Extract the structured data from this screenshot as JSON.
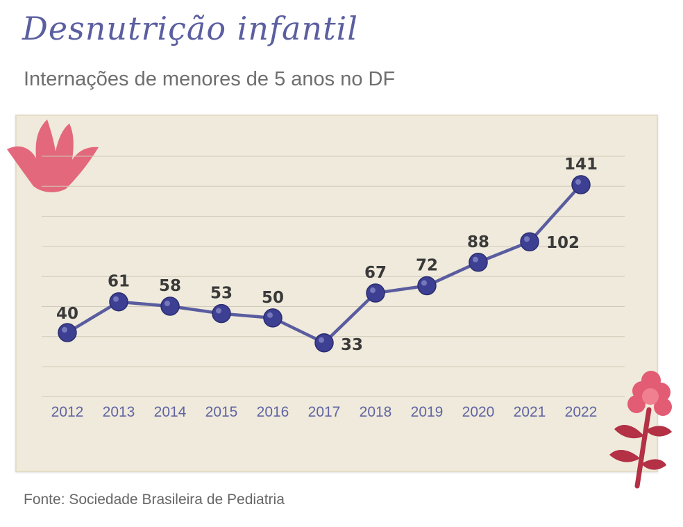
{
  "header": {
    "title": "Desnutrição infantil",
    "subtitle": "Internações de menores de 5 anos no DF"
  },
  "footer": {
    "source": "Fonte: Sociedade Brasileira de Pediatria"
  },
  "colors": {
    "line": "#5a5ca0",
    "point": "#3d3f92",
    "paper": "#efeadb",
    "grid": "#cfc9b9",
    "accent_flower": "#e25c74",
    "stem": "#b33045"
  },
  "decorations": [
    "flower-icon",
    "flower-stem-icon"
  ],
  "chart_data": {
    "type": "line",
    "title": "Desnutrição infantil",
    "subtitle": "Internações de menores de 5 anos no DF",
    "xlabel": "",
    "ylabel": "",
    "categories": [
      "2012",
      "2013",
      "2014",
      "2015",
      "2016",
      "2017",
      "2018",
      "2019",
      "2020",
      "2021",
      "2022"
    ],
    "values": [
      40,
      61,
      58,
      53,
      50,
      33,
      67,
      72,
      88,
      102,
      141
    ],
    "data_labels": [
      "40",
      "61",
      "58",
      "53",
      "50",
      "33",
      "67",
      "72",
      "88",
      "102",
      "141"
    ],
    "grid": true,
    "legend": "none"
  }
}
